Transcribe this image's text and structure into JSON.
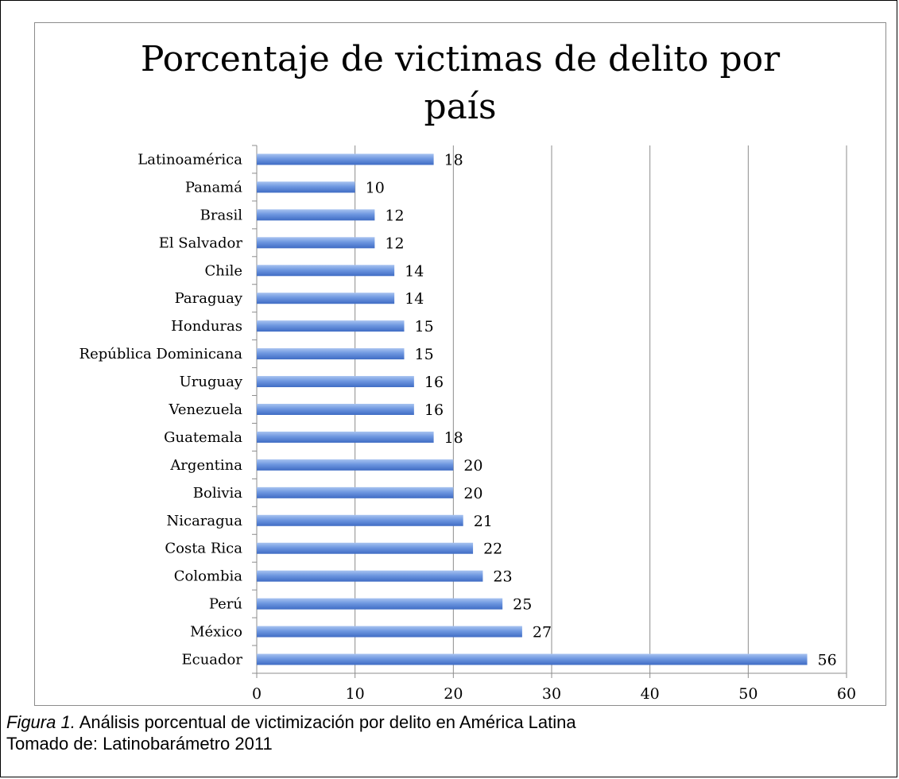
{
  "chart_data": {
    "type": "bar",
    "orientation": "horizontal",
    "title_line1": "Porcentaje de victimas de delito por",
    "title_line2": "país",
    "categories": [
      "Latinoamérica",
      "Panamá",
      "Brasil",
      "El Salvador",
      "Chile",
      "Paraguay",
      "Honduras",
      "República Dominicana",
      "Uruguay",
      "Venezuela",
      "Guatemala",
      "Argentina",
      "Bolivia",
      "Nicaragua",
      "Costa Rica",
      "Colombia",
      "Perú",
      "México",
      "Ecuador"
    ],
    "values": [
      18,
      10,
      12,
      12,
      14,
      14,
      15,
      15,
      16,
      16,
      18,
      20,
      20,
      21,
      22,
      23,
      25,
      27,
      56
    ],
    "value_labels": [
      "18",
      "10",
      "12",
      "12",
      "14",
      "14",
      "15",
      "15",
      "16",
      "16",
      "18",
      "20",
      "20",
      "21",
      "22",
      "23",
      "25",
      "27",
      "56"
    ],
    "xlim": [
      0,
      60
    ],
    "xticks": [
      "0",
      "10",
      "20",
      "30",
      "40",
      "50",
      "60"
    ],
    "grid": "vertical",
    "legend": "none",
    "bar_color": "#5b87d8"
  },
  "caption": {
    "figure_label": "Figura 1.",
    "figure_text": " Análisis porcentual de victimización por delito en América Latina",
    "source": "Tomado de: Latinobarámetro 2011"
  }
}
